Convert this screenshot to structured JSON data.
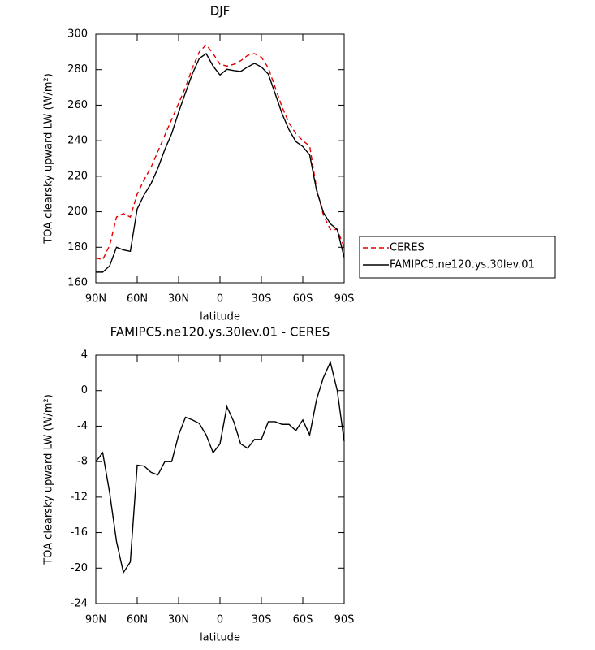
{
  "chart_data": [
    {
      "type": "line",
      "title": "DJF",
      "xlabel": "latitude",
      "ylabel": "TOA clearsky upward LW (W/m²)",
      "x": [
        90,
        85,
        80,
        75,
        70,
        65,
        60,
        55,
        50,
        45,
        40,
        35,
        30,
        25,
        20,
        15,
        10,
        5,
        0,
        -5,
        -10,
        -15,
        -20,
        -25,
        -30,
        -35,
        -40,
        -45,
        -50,
        -55,
        -60,
        -65,
        -70,
        -75,
        -80,
        -85,
        -90
      ],
      "xlim": [
        90,
        -90
      ],
      "xticks": [
        {
          "value": 90,
          "label": "90N"
        },
        {
          "value": 60,
          "label": "60N"
        },
        {
          "value": 30,
          "label": "30N"
        },
        0,
        {
          "value": -30,
          "label": "30S"
        },
        {
          "value": -60,
          "label": "60S"
        },
        {
          "value": -90,
          "label": "90S"
        }
      ],
      "ylim": [
        160,
        300
      ],
      "yticks": [
        160,
        180,
        200,
        220,
        240,
        260,
        280,
        300
      ],
      "legend": "outside-right",
      "series": [
        {
          "name": "CERES",
          "color": "#e00000",
          "line_style": "dashed",
          "values": [
            174,
            173,
            181,
            197,
            199,
            197,
            210,
            218,
            225,
            234,
            243,
            252,
            261,
            270,
            281,
            290,
            294,
            289,
            283,
            282,
            283,
            285,
            288,
            289,
            287,
            281,
            270,
            259,
            250,
            244,
            240,
            237,
            213,
            198,
            190,
            190,
            180
          ]
        },
        {
          "name": "FAMIPC5.ne120.ys.30lev.01",
          "color": "#000000",
          "line_style": "solid",
          "values": [
            166,
            166,
            169.5,
            180,
            178.5,
            177.7,
            201.6,
            209.5,
            215.8,
            224.5,
            235,
            244,
            256,
            267,
            277.7,
            286.3,
            289,
            282,
            277,
            280.2,
            279.5,
            279,
            281.5,
            283.5,
            281.5,
            277.5,
            266.5,
            255.2,
            246.2,
            239.5,
            236.7,
            232,
            212,
            199.5,
            193.2,
            190,
            174.3
          ]
        }
      ]
    },
    {
      "type": "line",
      "title": "FAMIPC5.ne120.ys.30lev.01 - CERES",
      "xlabel": "latitude",
      "ylabel": "TOA clearsky upward LW (W/m²)",
      "x": [
        90,
        85,
        80,
        75,
        70,
        65,
        60,
        55,
        50,
        45,
        40,
        35,
        30,
        25,
        20,
        15,
        10,
        5,
        0,
        -5,
        -10,
        -15,
        -20,
        -25,
        -30,
        -35,
        -40,
        -45,
        -50,
        -55,
        -60,
        -65,
        -70,
        -75,
        -80,
        -85,
        -90
      ],
      "xlim": [
        90,
        -90
      ],
      "xticks": [
        {
          "value": 90,
          "label": "90N"
        },
        {
          "value": 60,
          "label": "60N"
        },
        {
          "value": 30,
          "label": "30N"
        },
        0,
        {
          "value": -30,
          "label": "30S"
        },
        {
          "value": -60,
          "label": "60S"
        },
        {
          "value": -90,
          "label": "90S"
        }
      ],
      "ylim": [
        -24,
        4
      ],
      "yticks": [
        -24,
        -20,
        -16,
        -12,
        -8,
        -4,
        0,
        4
      ],
      "series": [
        {
          "color": "#000000",
          "line_style": "solid",
          "values": [
            -8,
            -7,
            -11.5,
            -17,
            -20.5,
            -19.3,
            -8.4,
            -8.5,
            -9.2,
            -9.5,
            -8,
            -8,
            -5,
            -3,
            -3.3,
            -3.7,
            -5,
            -7,
            -6,
            -1.8,
            -3.5,
            -6,
            -6.5,
            -5.5,
            -5.5,
            -3.5,
            -3.5,
            -3.8,
            -3.8,
            -4.5,
            -3.3,
            -5,
            -1,
            1.5,
            3.2,
            0,
            -5.7
          ]
        }
      ]
    }
  ]
}
